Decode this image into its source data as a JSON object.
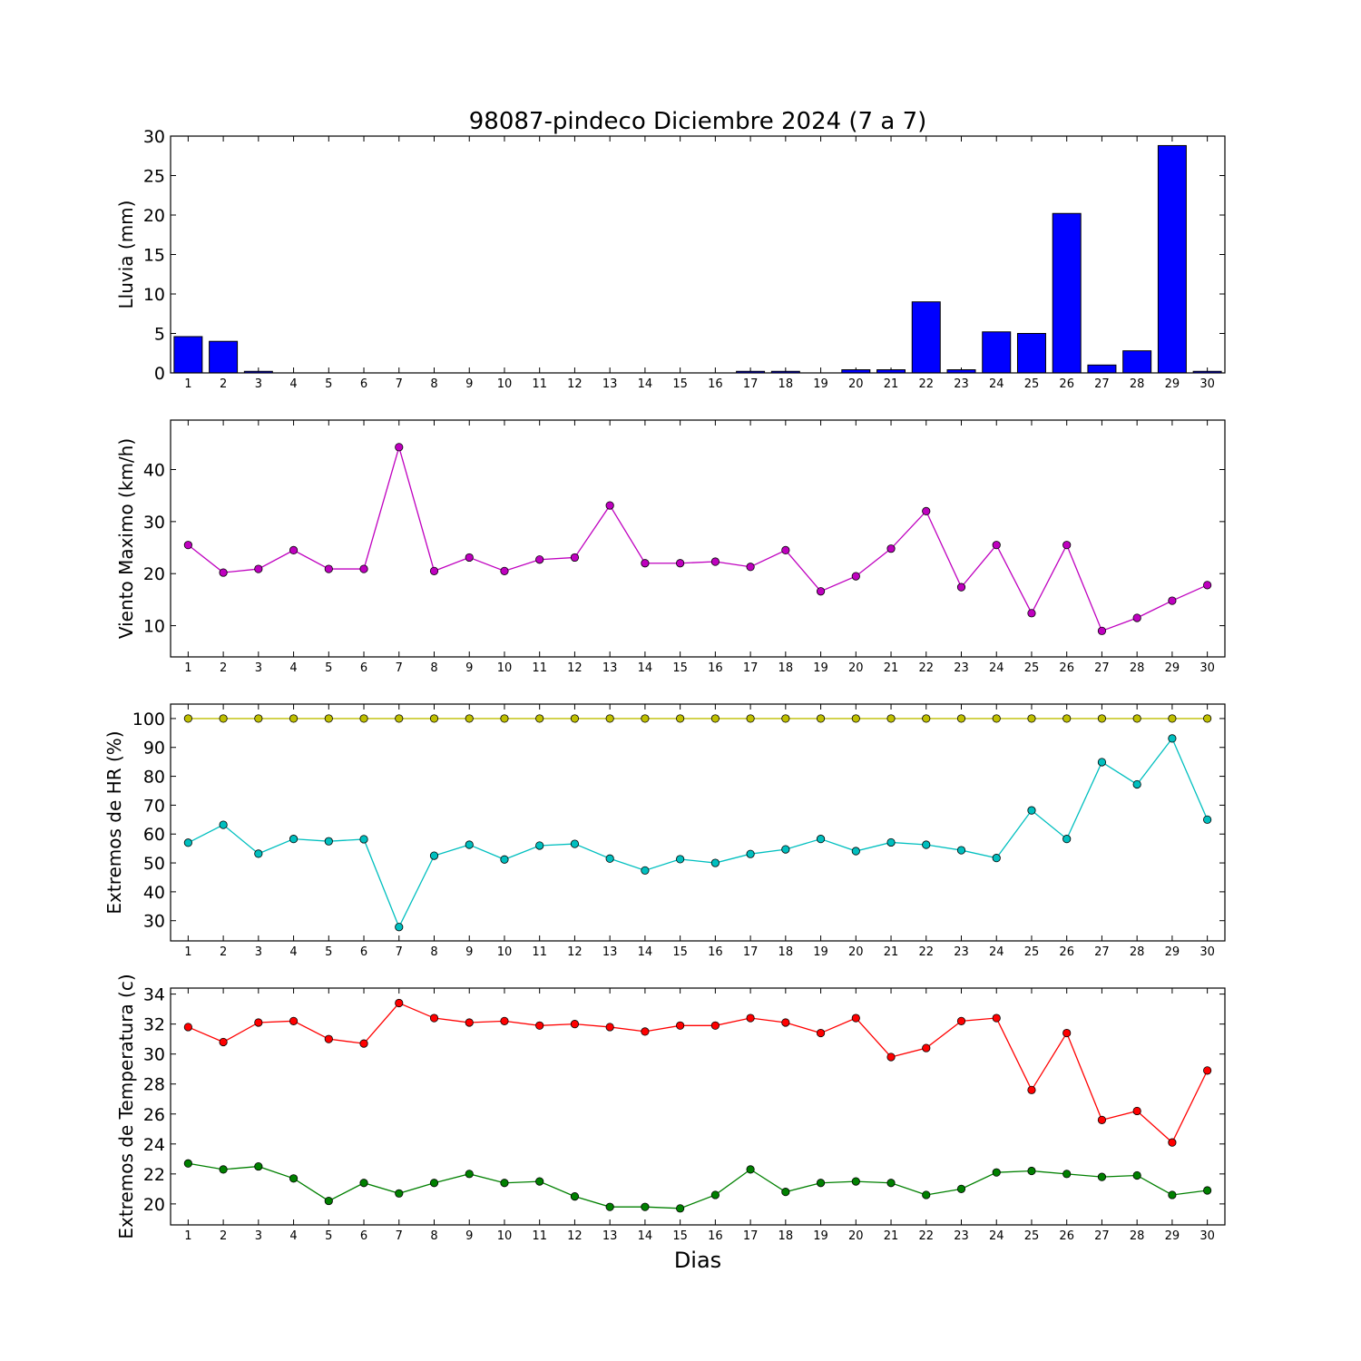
{
  "chart_data": {
    "title": "98087-pindeco Diciembre 2024  (7 a 7)",
    "xlabel": "Dias",
    "days": [
      1,
      2,
      3,
      4,
      5,
      6,
      7,
      8,
      9,
      10,
      11,
      12,
      13,
      14,
      15,
      16,
      17,
      18,
      19,
      20,
      21,
      22,
      23,
      24,
      25,
      26,
      27,
      28,
      29,
      30
    ],
    "panels": [
      {
        "type": "bar",
        "ylabel": "Lluvia (mm)",
        "ylim": [
          0,
          30
        ],
        "yticks": [
          0,
          5,
          10,
          15,
          20,
          25,
          30
        ],
        "series": [
          {
            "color": "#0000ff",
            "values": [
              4.6,
              4.0,
              0.2,
              0,
              0,
              0,
              0,
              0,
              0,
              0,
              0,
              0,
              0,
              0,
              0,
              0,
              0.2,
              0.2,
              0,
              0.4,
              0.4,
              9.0,
              0.4,
              5.2,
              5.0,
              20.2,
              1.0,
              2.8,
              28.8,
              0.2
            ]
          }
        ]
      },
      {
        "type": "line",
        "ylabel": "Viento Maximo (km/h)",
        "ylim": [
          4,
          49.5
        ],
        "yticks": [
          10,
          20,
          30,
          40
        ],
        "series": [
          {
            "color": "#bf00bf",
            "values": [
              25.5,
              20.2,
              20.9,
              24.5,
              20.9,
              20.9,
              44.3,
              20.5,
              23.1,
              20.5,
              22.7,
              23.1,
              33.1,
              22.0,
              22.0,
              22.3,
              21.3,
              24.5,
              16.6,
              19.5,
              24.8,
              32.0,
              17.4,
              25.5,
              12.4,
              25.5,
              9.0,
              11.5,
              14.8,
              17.8
            ]
          }
        ]
      },
      {
        "type": "line",
        "ylabel": "Extremos de HR (%)",
        "ylim": [
          23,
          105
        ],
        "yticks": [
          30,
          40,
          50,
          60,
          70,
          80,
          90,
          100
        ],
        "series": [
          {
            "color": "#bfbf00",
            "values": [
              100,
              100,
              100,
              100,
              100,
              100,
              100,
              100,
              100,
              100,
              100,
              100,
              100,
              100,
              100,
              100,
              100,
              100,
              100,
              100,
              100,
              100,
              100,
              100,
              100,
              100,
              100,
              100,
              100,
              100
            ]
          },
          {
            "color": "#00bfbf",
            "values": [
              57,
              63.2,
              53.2,
              58.3,
              57.5,
              58.2,
              27.8,
              52.5,
              56.3,
              51.2,
              56,
              56.6,
              51.5,
              47.4,
              51.3,
              50,
              53.1,
              54.7,
              58.3,
              54.1,
              57.1,
              56.3,
              54.4,
              51.7,
              68.2,
              58.3,
              84.9,
              77.2,
              93.1,
              65
            ]
          }
        ]
      },
      {
        "type": "line",
        "ylabel": "Extremos de Temperatura (c)",
        "ylim": [
          18.6,
          34.4
        ],
        "yticks": [
          20,
          22,
          24,
          26,
          28,
          30,
          32,
          34
        ],
        "series": [
          {
            "color": "#ff0000",
            "values": [
              31.8,
              30.8,
              32.1,
              32.2,
              31.0,
              30.7,
              33.4,
              32.4,
              32.1,
              32.2,
              31.9,
              32.0,
              31.8,
              31.5,
              31.9,
              31.9,
              32.4,
              32.1,
              31.4,
              32.4,
              29.8,
              30.4,
              32.2,
              32.4,
              27.6,
              31.4,
              25.6,
              26.2,
              24.1,
              28.9
            ]
          },
          {
            "color": "#008000",
            "values": [
              22.7,
              22.3,
              22.5,
              21.7,
              20.2,
              21.4,
              20.7,
              21.4,
              22.0,
              21.4,
              21.5,
              20.5,
              19.8,
              19.8,
              19.7,
              20.6,
              22.3,
              20.8,
              21.4,
              21.5,
              21.4,
              20.6,
              21.0,
              22.1,
              22.2,
              22.0,
              21.8,
              21.9,
              20.6,
              20.9
            ]
          }
        ]
      }
    ]
  }
}
